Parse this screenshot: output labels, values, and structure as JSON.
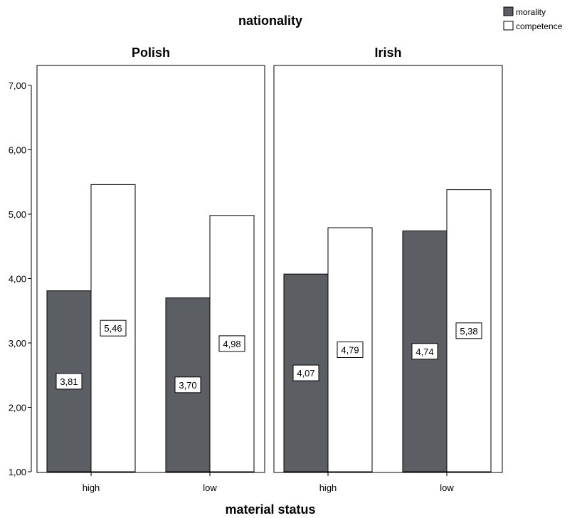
{
  "chart_data": {
    "type": "bar",
    "title": "nationality",
    "xlabel": "material status",
    "ylabel": "",
    "ylim": [
      1,
      7
    ],
    "yticks": [
      "1,00",
      "2,00",
      "3,00",
      "4,00",
      "5,00",
      "6,00",
      "7,00"
    ],
    "ytick_values": [
      1,
      2,
      3,
      4,
      5,
      6,
      7
    ],
    "legend": {
      "position": "top-right",
      "entries": [
        {
          "label": "morality",
          "color": "#5b5f63"
        },
        {
          "label": "competence",
          "color": "#ffffff"
        }
      ]
    },
    "categories": [
      "high",
      "low"
    ],
    "panels": [
      {
        "title": "Polish",
        "series": [
          {
            "name": "morality",
            "values": [
              3.81,
              3.7
            ],
            "labels": [
              "3,81",
              "3,70"
            ]
          },
          {
            "name": "competence",
            "values": [
              5.46,
              4.98
            ],
            "labels": [
              "5,46",
              "4,98"
            ]
          }
        ]
      },
      {
        "title": "Irish",
        "series": [
          {
            "name": "morality",
            "values": [
              4.07,
              4.74
            ],
            "labels": [
              "4,07",
              "4,74"
            ]
          },
          {
            "name": "competence",
            "values": [
              4.79,
              5.38
            ],
            "labels": [
              "4,79",
              "5,38"
            ]
          }
        ]
      }
    ]
  }
}
